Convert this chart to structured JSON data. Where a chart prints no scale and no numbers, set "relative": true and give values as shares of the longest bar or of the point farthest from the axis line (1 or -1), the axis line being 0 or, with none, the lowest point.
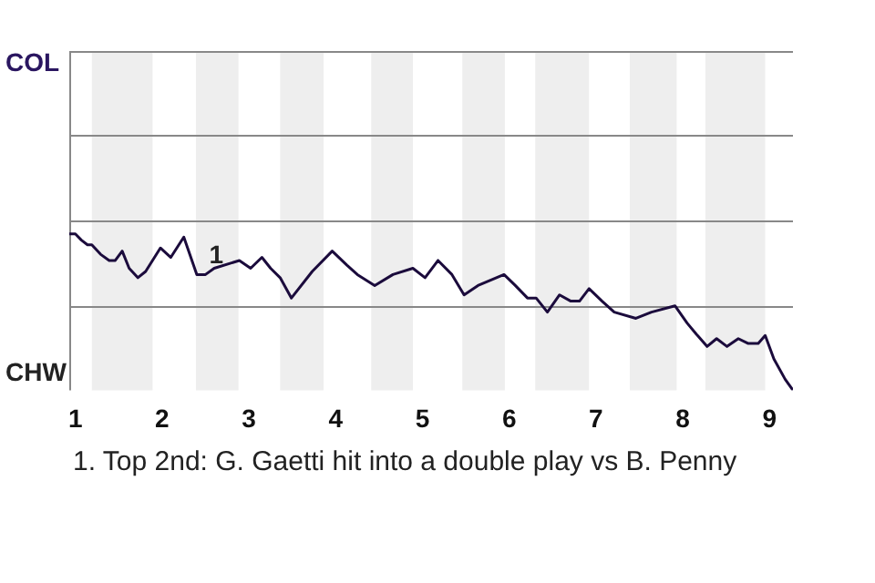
{
  "chart_data": {
    "type": "line",
    "relative": true,
    "xlim": [
      0.93,
      9.27
    ],
    "xticks": [
      1,
      2,
      3,
      4,
      5,
      6,
      7,
      8,
      9
    ],
    "marker": "none",
    "line_style": "solid",
    "ref_lines": [
      {
        "axis": "y",
        "value": 0.54,
        "color": "#888888"
      },
      {
        "axis": "y",
        "value": 1.09,
        "color": "#888888"
      },
      {
        "axis": "y",
        "value": 1.63,
        "color": "#888888"
      },
      {
        "axis": "y",
        "value": 2.17,
        "color": "#888888"
      }
    ],
    "bands": [
      {
        "axis": "x",
        "from": 1.19,
        "to": 1.89,
        "color": "#eeeeee"
      },
      {
        "axis": "x",
        "from": 2.39,
        "to": 2.88,
        "color": "#eeeeee"
      },
      {
        "axis": "x",
        "from": 3.36,
        "to": 3.86,
        "color": "#eeeeee"
      },
      {
        "axis": "x",
        "from": 4.41,
        "to": 4.89,
        "color": "#eeeeee"
      },
      {
        "axis": "x",
        "from": 5.46,
        "to": 5.95,
        "color": "#eeeeee"
      },
      {
        "axis": "x",
        "from": 6.3,
        "to": 6.92,
        "color": "#eeeeee"
      },
      {
        "axis": "x",
        "from": 7.39,
        "to": 7.93,
        "color": "#eeeeee"
      },
      {
        "axis": "x",
        "from": 8.26,
        "to": 8.95,
        "color": "#eeeeee"
      }
    ],
    "series": [
      {
        "color": "#1b0b3c",
        "x": [
          0.93,
          1,
          1.07,
          1.14,
          1.19,
          1.29,
          1.39,
          1.46,
          1.54,
          1.62,
          1.72,
          1.81,
          1.98,
          2.1,
          2.25,
          2.4,
          2.5,
          2.6,
          2.89,
          3.02,
          3.15,
          3.25,
          3.36,
          3.49,
          3.73,
          3.96,
          4.13,
          4.25,
          4.45,
          4.66,
          4.89,
          5.03,
          5.18,
          5.34,
          5.48,
          5.64,
          5.94,
          6.07,
          6.21,
          6.31,
          6.44,
          6.58,
          6.71,
          6.81,
          6.92,
          7.07,
          7.21,
          7.46,
          7.64,
          7.91,
          8.05,
          8.17,
          8.28,
          8.39,
          8.51,
          8.64,
          8.75,
          8.87,
          8.95,
          9.05,
          9.18,
          9.27
        ],
        "values": [
          1,
          1,
          0.96,
          0.93,
          0.93,
          0.87,
          0.83,
          0.83,
          0.89,
          0.78,
          0.72,
          0.76,
          0.91,
          0.85,
          0.98,
          0.74,
          0.74,
          0.78,
          0.83,
          0.78,
          0.85,
          0.78,
          0.72,
          0.59,
          0.76,
          0.89,
          0.8,
          0.74,
          0.67,
          0.74,
          0.78,
          0.72,
          0.83,
          0.74,
          0.61,
          0.67,
          0.74,
          0.67,
          0.59,
          0.59,
          0.5,
          0.61,
          0.57,
          0.57,
          0.65,
          0.57,
          0.5,
          0.46,
          0.5,
          0.54,
          0.43,
          0.35,
          0.28,
          0.33,
          0.28,
          0.33,
          0.3,
          0.3,
          0.35,
          0.2,
          0.07,
          0
        ]
      }
    ],
    "annotations": [
      "COL",
      "CHW",
      {
        "text": "1",
        "x": 2.5,
        "y": 0.74
      },
      "1. Top 2nd: G. Gaetti hit into a double play vs B. Penny"
    ]
  }
}
